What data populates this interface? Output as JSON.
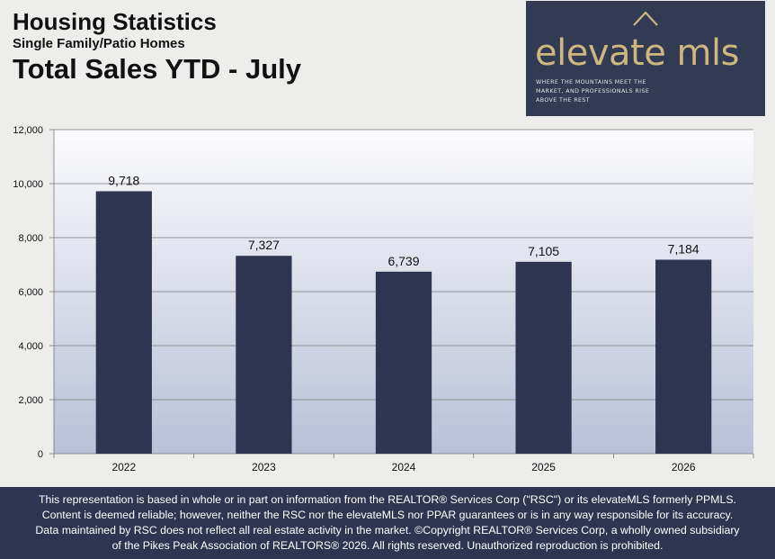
{
  "header": {
    "title": "Housing Statistics",
    "subtitle": "Single Family/Patio Homes",
    "heading": "Total Sales YTD - July"
  },
  "logo": {
    "brand": "elevate mls",
    "tagline": [
      "WHERE THE MOUNTAINS MEET THE",
      "MARKET, AND PROFESSIONALS RISE",
      "ABOVE THE REST"
    ]
  },
  "colors": {
    "bar": "#2f3550",
    "footer_bg": "#2f3550",
    "logo_bg": "#323a54",
    "logo_gold": "#cdb77e"
  },
  "chart_data": {
    "type": "bar",
    "categories": [
      "2022",
      "2023",
      "2024",
      "2025",
      "2026"
    ],
    "values": [
      9718,
      7327,
      6739,
      7105,
      7184
    ],
    "data_labels": [
      "9,718",
      "7,327",
      "6,739",
      "7,105",
      "7,184"
    ],
    "ylim": [
      0,
      12000
    ],
    "yticks": [
      0,
      2000,
      4000,
      6000,
      8000,
      10000,
      12000
    ],
    "ytick_labels": [
      "0",
      "2,000",
      "4,000",
      "6,000",
      "8,000",
      "10,000",
      "12,000"
    ],
    "grid": true,
    "legend": "none"
  },
  "footer": {
    "lines": [
      "This representation is based in whole or in part on information from the REALTOR® Services Corp (\"RSC\") or its elevateMLS formerly PPMLS.",
      "Content is deemed reliable; however, neither the RSC nor the elevateMLS nor PPAR guarantees or is in any way responsible for its accuracy.",
      "Data maintained by RSC does not reflect all real estate activity in the market. ©Copyright REALTOR® Services Corp, a wholly owned subsidiary",
      "of the Pikes Peak Association of REALTORS® 2026. All rights reserved. Unauthorized reproduction is prohibited."
    ]
  }
}
